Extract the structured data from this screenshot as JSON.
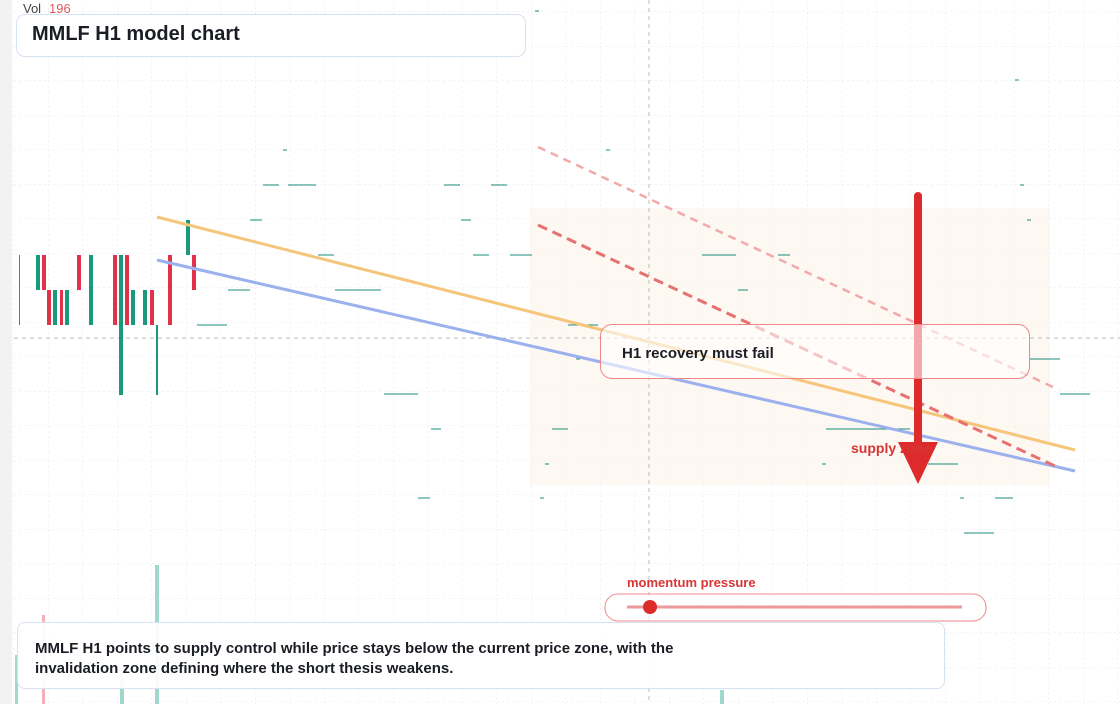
{
  "header": {
    "vol_label": "Vol",
    "vol_value": 196,
    "title": "MMLF H1 model chart"
  },
  "annotations": {
    "callout": "H1 recovery must fail",
    "zone_label": "supply zone",
    "slider_label": "momentum pressure"
  },
  "footer": {
    "text": "MMLF H1 points to supply control while price stays below the current price zone, with the invalidation zone defining where the short thesis weakens."
  }
}
